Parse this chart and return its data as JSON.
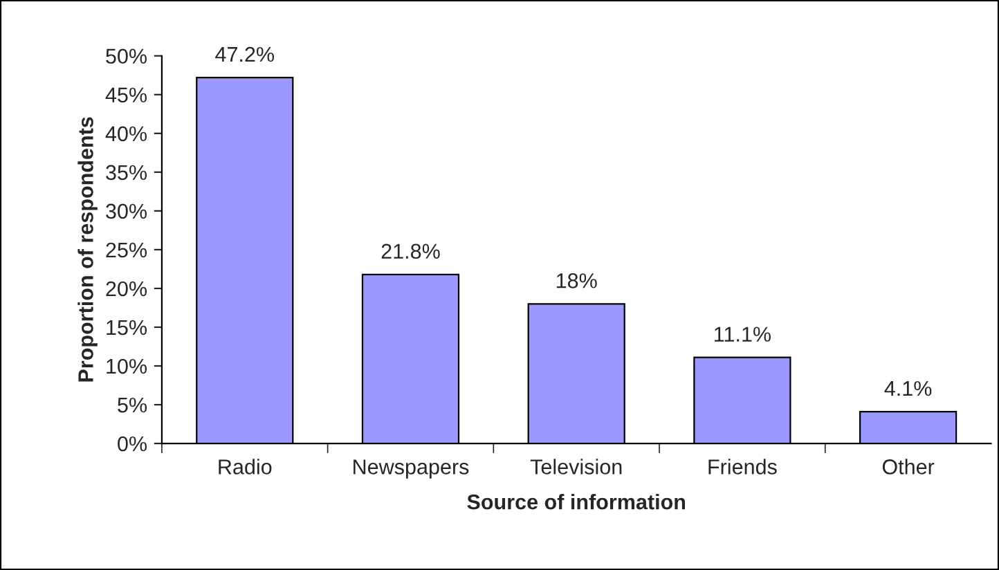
{
  "chart_data": {
    "type": "bar",
    "xlabel": "Source of information",
    "ylabel": "Proportion of respondents",
    "categories": [
      "Radio",
      "Newspapers",
      "Television",
      "Friends",
      "Other"
    ],
    "values": [
      47.2,
      21.8,
      18,
      11.1,
      4.1
    ],
    "value_labels": [
      "47.2%",
      "21.8%",
      "18%",
      "11.1%",
      "4.1%"
    ],
    "color": "#9999ff",
    "ylim": [
      0,
      50
    ],
    "yticks": [
      {
        "value": 0,
        "label": "0%"
      },
      {
        "value": 5,
        "label": "5%"
      },
      {
        "value": 10,
        "label": "10%"
      },
      {
        "value": 15,
        "label": "15%"
      },
      {
        "value": 20,
        "label": "20%"
      },
      {
        "value": 25,
        "label": "25%"
      },
      {
        "value": 30,
        "label": "30%"
      },
      {
        "value": 35,
        "label": "35%"
      },
      {
        "value": 40,
        "label": "40%"
      },
      {
        "value": 45,
        "label": "45%"
      },
      {
        "value": 50,
        "label": "50%"
      }
    ],
    "grid": false,
    "legend": false
  }
}
